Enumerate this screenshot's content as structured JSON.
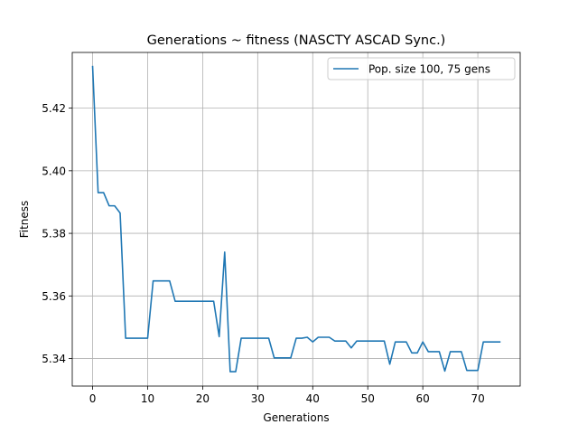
{
  "chart_data": {
    "type": "line",
    "title": "Generations ~ fitness (NASCTY ASCAD Sync.)",
    "xlabel": "Generations",
    "ylabel": "Fitness",
    "xlim": [
      -3.7,
      77.7
    ],
    "ylim": [
      5.3312,
      5.4378
    ],
    "xticks": [
      0,
      10,
      20,
      30,
      40,
      50,
      60,
      70
    ],
    "yticks": [
      5.34,
      5.36,
      5.38,
      5.4,
      5.42
    ],
    "ytick_labels": [
      "5.34",
      "5.36",
      "5.38",
      "5.40",
      "5.42"
    ],
    "grid": true,
    "legend_position": "top-right",
    "series": [
      {
        "name": "Pop. size 100, 75 gens",
        "color": "#1f77b4",
        "x": [
          0,
          1,
          2,
          3,
          4,
          5,
          6,
          7,
          8,
          9,
          10,
          11,
          12,
          13,
          14,
          15,
          16,
          17,
          18,
          19,
          20,
          21,
          22,
          23,
          24,
          25,
          26,
          27,
          28,
          29,
          30,
          31,
          32,
          33,
          34,
          35,
          36,
          37,
          38,
          39,
          40,
          41,
          42,
          43,
          44,
          45,
          46,
          47,
          48,
          49,
          50,
          51,
          52,
          53,
          54,
          55,
          56,
          57,
          58,
          59,
          60,
          61,
          62,
          63,
          64,
          65,
          66,
          67,
          68,
          69,
          70,
          71,
          72,
          73,
          74
        ],
        "y": [
          5.4333,
          5.393,
          5.393,
          5.3888,
          5.3888,
          5.3865,
          5.3465,
          5.3465,
          5.3465,
          5.3465,
          5.3465,
          5.3648,
          5.3648,
          5.3648,
          5.3648,
          5.3583,
          5.3583,
          5.3583,
          5.3583,
          5.3583,
          5.3583,
          5.3583,
          5.3583,
          5.347,
          5.374,
          5.3358,
          5.3358,
          5.3465,
          5.3465,
          5.3465,
          5.3465,
          5.3465,
          5.3465,
          5.3402,
          5.3402,
          5.3402,
          5.3402,
          5.3465,
          5.3465,
          5.3468,
          5.3453,
          5.3468,
          5.3468,
          5.3468,
          5.3456,
          5.3456,
          5.3456,
          5.3434,
          5.3456,
          5.3456,
          5.3456,
          5.3456,
          5.3456,
          5.3456,
          5.3382,
          5.3453,
          5.3453,
          5.3453,
          5.3418,
          5.3418,
          5.3453,
          5.3422,
          5.3422,
          5.3422,
          5.336,
          5.3422,
          5.3422,
          5.3422,
          5.3362,
          5.3362,
          5.3362,
          5.3453,
          5.3453,
          5.3453,
          5.3453
        ]
      }
    ]
  }
}
